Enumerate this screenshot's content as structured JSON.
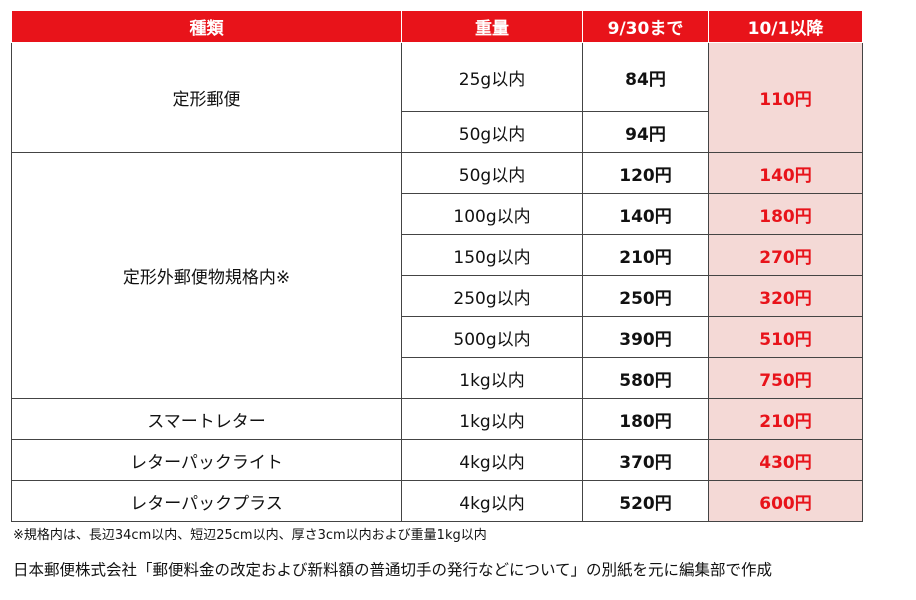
{
  "table": {
    "headers": [
      "種類",
      "重量",
      "9/30まで",
      "10/1以降"
    ],
    "groups": [
      {
        "type": "定形郵便",
        "rows": [
          {
            "weight": "25g以内",
            "old": "84円"
          },
          {
            "weight": "50g以内",
            "old": "94円"
          }
        ],
        "merged_new": "110円"
      },
      {
        "type": "定形外郵便物規格内※",
        "rows": [
          {
            "weight": "50g以内",
            "old": "120円",
            "new": "140円"
          },
          {
            "weight": "100g以内",
            "old": "140円",
            "new": "180円"
          },
          {
            "weight": "150g以内",
            "old": "210円",
            "new": "270円"
          },
          {
            "weight": "250g以内",
            "old": "250円",
            "new": "320円"
          },
          {
            "weight": "500g以内",
            "old": "390円",
            "new": "510円"
          },
          {
            "weight": "1kg以内",
            "old": "580円",
            "new": "750円"
          }
        ]
      },
      {
        "type": "スマートレター",
        "rows": [
          {
            "weight": "1kg以内",
            "old": "180円",
            "new": "210円"
          }
        ]
      },
      {
        "type": "レターパックライト",
        "rows": [
          {
            "weight": "4kg以内",
            "old": "370円",
            "new": "430円"
          }
        ]
      },
      {
        "type": "レターパックプラス",
        "rows": [
          {
            "weight": "4kg以内",
            "old": "520円",
            "new": "600円"
          }
        ]
      }
    ]
  },
  "note": "※規格内は、長辺34cm以内、短辺25cm以内、厚さ3cm以内および重量1kg以内",
  "source": "日本郵便株式会社「郵便料金の改定および新料額の普通切手の発行などについて」の別紙を元に編集部で作成",
  "colors": {
    "header_bg": "#e8131a",
    "new_price_bg": "#f4d9d6",
    "new_price_text": "#e8131a"
  }
}
